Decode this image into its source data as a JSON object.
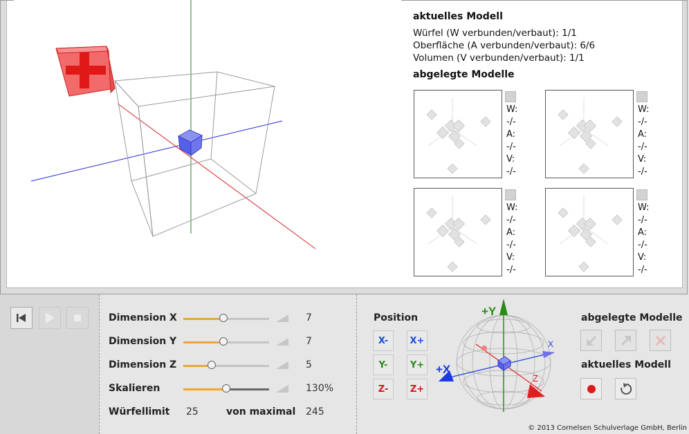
{
  "info": {
    "current_heading": "aktuelles Modell",
    "lines": [
      "Würfel (W verbunden/verbaut): 1/1",
      "Oberfläche (A verbunden/verbaut): 6/6",
      "Volumen (V verbunden/verbaut): 1/1"
    ],
    "saved_heading": "abgelegte Modelle"
  },
  "thumbnails": [
    {
      "w_label": "W:",
      "w_val": "-/-",
      "a_label": "A:",
      "a_val": "-/-",
      "v_label": "V:",
      "v_val": "-/-"
    },
    {
      "w_label": "W:",
      "w_val": "-/-",
      "a_label": "A:",
      "a_val": "-/-",
      "v_label": "V:",
      "v_val": "-/-"
    },
    {
      "w_label": "W:",
      "w_val": "-/-",
      "a_label": "A:",
      "a_val": "-/-",
      "v_label": "V:",
      "v_val": "-/-"
    },
    {
      "w_label": "W:",
      "w_val": "-/-",
      "a_label": "A:",
      "a_val": "-/-",
      "v_label": "V:",
      "v_val": "-/-"
    }
  ],
  "controls": {
    "dim_x": {
      "label": "Dimension X",
      "value": "7",
      "level": 0.47
    },
    "dim_y": {
      "label": "Dimension Y",
      "value": "7",
      "level": 0.47
    },
    "dim_z": {
      "label": "Dimension Z",
      "value": "5",
      "level": 0.33
    },
    "scale": {
      "label": "Skalieren",
      "value": "130%",
      "level": 0.5
    },
    "limit": {
      "label": "Würfellimit",
      "value": "25",
      "max_label": "von maximal",
      "max_value": "245"
    }
  },
  "position": {
    "title": "Position",
    "buttons": [
      {
        "label": "X-",
        "color": "#1a4fd8"
      },
      {
        "label": "X+",
        "color": "#1a4fd8"
      },
      {
        "label": "Y-",
        "color": "#2a8a1a"
      },
      {
        "label": "Y+",
        "color": "#2a8a1a"
      },
      {
        "label": "Z-",
        "color": "#d01a1a"
      },
      {
        "label": "Z+",
        "color": "#d01a1a"
      }
    ]
  },
  "globe_labels": {
    "y": "+Y",
    "x": "+X",
    "x_small": "X",
    "z_small": "Z"
  },
  "right_panel": {
    "saved_title": "abgelegte Modelle",
    "current_title": "aktuelles Modell"
  },
  "copyright": "© 2013 Cornelsen Schulverlage GmbH, Berlin",
  "icons": [
    "skip-back-icon",
    "play-icon",
    "stop-icon",
    "arrow-down-left-icon",
    "arrow-up-right-icon",
    "close-icon",
    "record-icon",
    "reset-icon",
    "plus-icon"
  ]
}
